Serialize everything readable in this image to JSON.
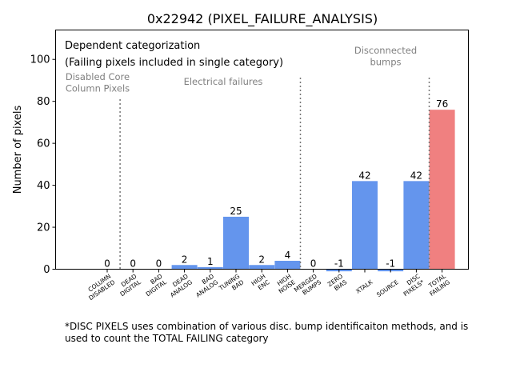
{
  "chart_data": {
    "type": "bar",
    "title": "0x22942 (PIXEL_FAILURE_ANALYSIS)",
    "xlabel": "",
    "ylabel": "Number of pixels",
    "ylim": [
      0,
      114
    ],
    "yticks": [
      0,
      20,
      40,
      60,
      80,
      100
    ],
    "grid": false,
    "categories": [
      "COLUMN\nDISABLED",
      "DEAD\nDIGITAL",
      "BAD\nDIGITAL",
      "DEAD\nANALOG",
      "BAD\nANALOG",
      "TUNING\nBAD",
      "HIGH\nENC",
      "HIGH\nNOISE",
      "MERGED\nBUMPS",
      "ZERO\nBIAS",
      "XTALK",
      "SOURCE",
      "DISC\nPIXELS*",
      "TOTAL\nFAILING"
    ],
    "values": [
      0,
      0,
      0,
      2,
      1,
      25,
      2,
      4,
      0,
      -1,
      42,
      -1,
      42,
      76
    ],
    "value_labels": [
      "0",
      "0",
      "0",
      "2",
      "1",
      "25",
      "2",
      "4",
      "0",
      "-1",
      "42",
      "-1",
      "42",
      "76"
    ],
    "bar_colors": [
      "#6495ed",
      "#6495ed",
      "#6495ed",
      "#6495ed",
      "#6495ed",
      "#6495ed",
      "#6495ed",
      "#6495ed",
      "#6495ed",
      "#6495ed",
      "#6495ed",
      "#6495ed",
      "#6495ed",
      "#f08080"
    ],
    "dividers_after_index": [
      0,
      7,
      12
    ],
    "legend_text": [
      "Dependent categorization",
      "(Failing pixels included in single category)"
    ],
    "section_labels": [
      {
        "text": "Disabled Core\nColumn Pixels",
        "color": "#808080"
      },
      {
        "text": "Electrical failures",
        "color": "#808080"
      },
      {
        "text": "Disconnected\nbumps",
        "color": "#808080"
      }
    ]
  },
  "footnote": "*DISC PIXELS uses combination of various disc. bump identificaiton methods, and is\nused to count the TOTAL FAILING category"
}
